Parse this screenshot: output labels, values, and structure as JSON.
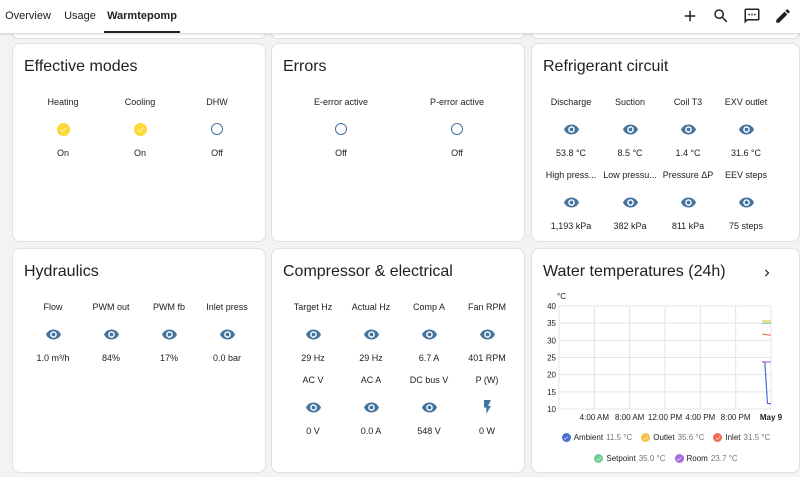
{
  "tabs": [
    {
      "label": "Overview"
    },
    {
      "label": "Usage"
    },
    {
      "label": "Warmtepomp"
    }
  ],
  "header_actions": [
    "plus-icon",
    "search-icon",
    "assist-icon",
    "edit-icon"
  ],
  "colors": {
    "accent": "#44739e",
    "check_yellow": "#fdd835",
    "ambient": "#4a6cd4",
    "outlet": "#f2c145",
    "inlet": "#ee6f4f",
    "setpoint": "#6fcf97",
    "room": "#a46ee3"
  },
  "effective_modes": {
    "title": "Effective modes",
    "items": [
      {
        "label": "Heating",
        "icon": "check-circle-icon",
        "value": "On"
      },
      {
        "label": "Cooling",
        "icon": "check-circle-icon",
        "value": "On"
      },
      {
        "label": "DHW",
        "icon": "circle-outline-icon",
        "value": "Off"
      }
    ]
  },
  "errors": {
    "title": "Errors",
    "items": [
      {
        "label": "E-error active",
        "icon": "circle-outline-icon",
        "value": "Off"
      },
      {
        "label": "P-error active",
        "icon": "circle-outline-icon",
        "value": "Off"
      }
    ]
  },
  "refrigerant": {
    "title": "Refrigerant circuit",
    "items": [
      {
        "label": "Discharge",
        "value": "53.8 °C"
      },
      {
        "label": "Suction",
        "value": "8.5 °C"
      },
      {
        "label": "Coil T3",
        "value": "1.4 °C"
      },
      {
        "label": "EXV outlet",
        "value": "31.6 °C"
      },
      {
        "label": "High press...",
        "value": "1,193 kPa"
      },
      {
        "label": "Low pressu...",
        "value": "382 kPa"
      },
      {
        "label": "Pressure ΔP",
        "value": "811 kPa"
      },
      {
        "label": "EEV steps",
        "value": "75 steps"
      }
    ]
  },
  "hydraulics": {
    "title": "Hydraulics",
    "items": [
      {
        "label": "Flow",
        "value": "1.0 m³/h"
      },
      {
        "label": "PWM out",
        "value": "84%"
      },
      {
        "label": "PWM fb",
        "value": "17%"
      },
      {
        "label": "Inlet press",
        "value": "0.0 bar"
      }
    ]
  },
  "compressor": {
    "title": "Compressor & electrical",
    "items": [
      {
        "label": "Target Hz",
        "value": "29 Hz",
        "icon": "eye-icon"
      },
      {
        "label": "Actual Hz",
        "value": "29 Hz",
        "icon": "eye-icon"
      },
      {
        "label": "Comp A",
        "value": "6.7 A",
        "icon": "eye-icon"
      },
      {
        "label": "Fan RPM",
        "value": "401 RPM",
        "icon": "eye-icon"
      },
      {
        "label": "AC V",
        "value": "0 V",
        "icon": "eye-icon"
      },
      {
        "label": "AC A",
        "value": "0.0 A",
        "icon": "eye-icon"
      },
      {
        "label": "DC bus V",
        "value": "548 V",
        "icon": "eye-icon"
      },
      {
        "label": "P (W)",
        "value": "0 W",
        "icon": "flash-icon"
      }
    ]
  },
  "water_temps": {
    "title": "Water temperatures (24h)",
    "legend": [
      {
        "name": "Ambient",
        "value": "11.5 °C",
        "color": "#4a6cd4"
      },
      {
        "name": "Outlet",
        "value": "35.6 °C",
        "color": "#f2c145"
      },
      {
        "name": "Inlet",
        "value": "31.5 °C",
        "color": "#ee6f4f"
      },
      {
        "name": "Setpoint",
        "value": "35.0 °C",
        "color": "#6fcf97"
      },
      {
        "name": "Room",
        "value": "23.7 °C",
        "color": "#a46ee3"
      }
    ]
  },
  "chart_data": {
    "type": "line",
    "title": "Water temperatures (24h)",
    "ylabel": "°C",
    "ylim": [
      10,
      40
    ],
    "yticks": [
      "10",
      "15",
      "20",
      "25",
      "30",
      "35",
      "40"
    ],
    "xticks": [
      "4:00 AM",
      "8:00 AM",
      "12:00 PM",
      "4:00 PM",
      "8:00 PM",
      "May 9"
    ],
    "grid": true,
    "legend_position": "bottom",
    "series": [
      {
        "name": "Ambient",
        "color": "#4a6cd4",
        "points": [
          [
            23.0,
            23.8
          ],
          [
            23.3,
            23.7
          ],
          [
            23.6,
            11.6
          ],
          [
            24.0,
            11.5
          ]
        ]
      },
      {
        "name": "Outlet",
        "color": "#f2c145",
        "points": [
          [
            23.0,
            35.6
          ],
          [
            24.0,
            35.6
          ]
        ]
      },
      {
        "name": "Inlet",
        "color": "#ee6f4f",
        "points": [
          [
            23.0,
            31.8
          ],
          [
            24.0,
            31.5
          ]
        ]
      },
      {
        "name": "Setpoint",
        "color": "#6fcf97",
        "points": [
          [
            23.0,
            35.0
          ],
          [
            24.0,
            35.0
          ]
        ]
      },
      {
        "name": "Room",
        "color": "#a46ee3",
        "points": [
          [
            23.0,
            23.7
          ],
          [
            24.0,
            23.7
          ]
        ]
      }
    ]
  }
}
